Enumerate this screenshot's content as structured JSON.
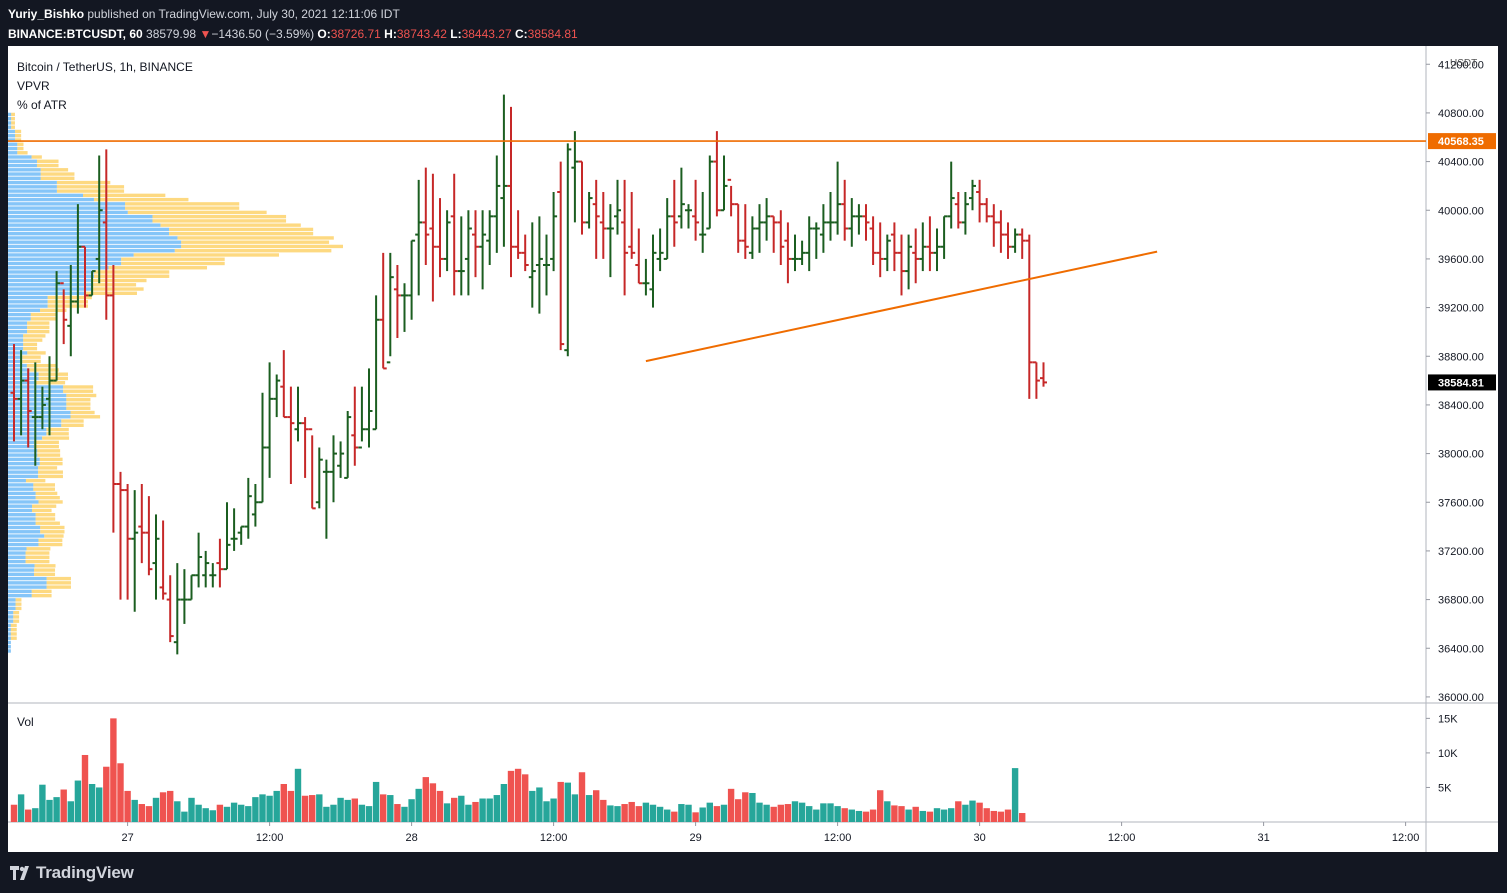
{
  "header": {
    "author": "Yuriy_Bishko",
    "published_text": "published on TradingView.com, July 30, 2021 12:11:06 IDT",
    "symbol": "BINANCE:BTCUSDT, 60",
    "last_price": "38579.98",
    "change_arrow": "▼",
    "change": "−1436.50 (−3.59%)",
    "open_label": "O:",
    "open": "38726.71",
    "high_label": "H:",
    "high": "38743.42",
    "low_label": "L:",
    "low": "38443.27",
    "close_label": "C:",
    "close": "38584.81"
  },
  "legend": {
    "series": "Bitcoin / TetherUS, 1h, BINANCE",
    "indicator1": "VPVR",
    "indicator2": "% of ATR"
  },
  "volume_pane": {
    "label": "Vol"
  },
  "footer": {
    "brand": "TradingView",
    "logo_icon": "tradingview-logo-icon"
  },
  "colors": {
    "up": "#1b5e20",
    "down": "#c62828",
    "vol_up": "#26a69a",
    "vol_down": "#ef5350",
    "annotation": "#ef6c00",
    "vpvr_blue": "#2196f3",
    "vpvr_yellow": "#fbc02d"
  },
  "chart_data": {
    "type": "ohlc",
    "quote_unit": "USDT",
    "y_range": [
      35950,
      41350
    ],
    "y_ticks": [
      "41200.00",
      "40800.00",
      "40400.00",
      "40000.00",
      "39600.00",
      "39200.00",
      "38800.00",
      "38400.00",
      "38000.00",
      "37600.00",
      "37200.00",
      "36800.00",
      "36400.00",
      "36000.00"
    ],
    "x_ticks": [
      {
        "label": "27",
        "bar": 16
      },
      {
        "label": "12:00",
        "bar": 36
      },
      {
        "label": "28",
        "bar": 56
      },
      {
        "label": "12:00",
        "bar": 76
      },
      {
        "label": "29",
        "bar": 96
      },
      {
        "label": "12:00",
        "bar": 116
      },
      {
        "label": "30",
        "bar": 136
      },
      {
        "label": "12:00",
        "bar": 156
      },
      {
        "label": "31",
        "bar": 176
      },
      {
        "label": "12:00",
        "bar": 196
      }
    ],
    "horizontal_level": {
      "price": 40568.35,
      "label": "40568.35"
    },
    "last_price_label": {
      "price": 38584.81,
      "label": "38584.81"
    },
    "trendline": {
      "from": {
        "bar": 89,
        "price": 38760
      },
      "to": {
        "bar": 161,
        "price": 39660
      }
    },
    "volume_ticks": [
      {
        "label": "15K",
        "v": 15000
      },
      {
        "label": "10K",
        "v": 10000
      },
      {
        "label": "5K",
        "v": 5000
      }
    ],
    "volume_max": 16500,
    "bars_open_high_low_close": [
      [
        38500,
        38900,
        38100,
        38450
      ],
      [
        38450,
        38850,
        38150,
        38600
      ],
      [
        38600,
        38700,
        38050,
        38350
      ],
      [
        38300,
        38750,
        37900,
        38300
      ],
      [
        38300,
        38550,
        38200,
        38400
      ],
      [
        38450,
        38800,
        38150,
        38600
      ],
      [
        38600,
        39500,
        38600,
        39400
      ],
      [
        39400,
        39350,
        38900,
        39100
      ],
      [
        39050,
        39550,
        38800,
        39250
      ],
      [
        39250,
        40050,
        39150,
        39700
      ],
      [
        39700,
        39700,
        39200,
        39300
      ],
      [
        39300,
        39500,
        39300,
        39500
      ],
      [
        39600,
        40450,
        39400,
        40000
      ],
      [
        39900,
        40500,
        39100,
        39300
      ],
      [
        39300,
        39550,
        37350,
        37750
      ],
      [
        37750,
        37850,
        36800,
        37700
      ],
      [
        37700,
        37750,
        36800,
        37300
      ],
      [
        37300,
        37700,
        36700,
        37350
      ],
      [
        37400,
        37750,
        37100,
        37350
      ],
      [
        37350,
        37650,
        37000,
        37050
      ],
      [
        37100,
        37500,
        36800,
        37300
      ],
      [
        36900,
        37450,
        36800,
        36850
      ],
      [
        36800,
        37000,
        36450,
        36500
      ],
      [
        36450,
        37100,
        36350,
        36800
      ],
      [
        36800,
        37050,
        36600,
        36800
      ],
      [
        36800,
        37000,
        36800,
        37000
      ],
      [
        37000,
        37350,
        36900,
        37150
      ],
      [
        37000,
        37200,
        36900,
        37100
      ],
      [
        37000,
        37100,
        36900,
        37000
      ],
      [
        37100,
        37300,
        36900,
        37050
      ],
      [
        37050,
        37600,
        37050,
        37250
      ],
      [
        37300,
        37550,
        37200,
        37300
      ],
      [
        37350,
        37400,
        37250,
        37400
      ],
      [
        37400,
        37800,
        37300,
        37650
      ],
      [
        37500,
        37750,
        37400,
        37600
      ],
      [
        37600,
        38500,
        37600,
        38050
      ],
      [
        38050,
        38750,
        37800,
        38450
      ],
      [
        38450,
        38650,
        38300,
        38600
      ],
      [
        38550,
        38850,
        38300,
        38300
      ],
      [
        38300,
        38550,
        37750,
        38250
      ],
      [
        38200,
        38550,
        38100,
        38250
      ],
      [
        38250,
        38300,
        37800,
        38200
      ],
      [
        38200,
        38150,
        37550,
        37550
      ],
      [
        37600,
        38050,
        37550,
        37950
      ],
      [
        37850,
        37950,
        37300,
        37850
      ],
      [
        37850,
        38150,
        37600,
        38000
      ],
      [
        37900,
        38100,
        37800,
        38000
      ],
      [
        37800,
        38350,
        37800,
        38300
      ],
      [
        38150,
        38550,
        37900,
        38050
      ],
      [
        38050,
        38550,
        38100,
        38200
      ],
      [
        38200,
        38700,
        38050,
        38350
      ],
      [
        38200,
        39300,
        38200,
        39100
      ],
      [
        39100,
        39650,
        38700,
        38700
      ],
      [
        38750,
        39650,
        38800,
        39450
      ],
      [
        39350,
        39550,
        38950,
        39300
      ],
      [
        39300,
        39400,
        39000,
        39300
      ],
      [
        39300,
        39750,
        39100,
        39750
      ],
      [
        39800,
        40250,
        39300,
        39900
      ],
      [
        39900,
        40350,
        39550,
        39800
      ],
      [
        39850,
        40300,
        39250,
        39700
      ],
      [
        39700,
        40100,
        39450,
        39600
      ],
      [
        39600,
        40000,
        39500,
        39900
      ],
      [
        39950,
        40300,
        39300,
        39500
      ],
      [
        39500,
        39950,
        39300,
        39500
      ],
      [
        39600,
        40000,
        39300,
        39850
      ],
      [
        39800,
        40000,
        39450,
        39700
      ],
      [
        39700,
        40000,
        39350,
        39800
      ],
      [
        39750,
        40000,
        39550,
        39950
      ],
      [
        39950,
        40450,
        39650,
        40200
      ],
      [
        40100,
        40950,
        39700,
        40200
      ],
      [
        40200,
        40850,
        39450,
        39700
      ],
      [
        39700,
        40000,
        39600,
        39650
      ],
      [
        39650,
        39800,
        39500,
        39550
      ],
      [
        39450,
        39900,
        39200,
        39500
      ],
      [
        39550,
        39950,
        39150,
        39600
      ],
      [
        39550,
        39800,
        39300,
        39550
      ],
      [
        39600,
        40150,
        39500,
        39950
      ],
      [
        40150,
        40400,
        38850,
        38900
      ],
      [
        38850,
        40550,
        38800,
        40500
      ],
      [
        40350,
        40650,
        39900,
        40400
      ],
      [
        40400,
        40400,
        39800,
        39900
      ],
      [
        39900,
        40150,
        39850,
        40100
      ],
      [
        40050,
        40250,
        39600,
        39950
      ],
      [
        39900,
        40150,
        39600,
        39850
      ],
      [
        39850,
        40050,
        39450,
        39850
      ],
      [
        39950,
        40250,
        39800,
        40000
      ],
      [
        39900,
        40250,
        39300,
        39650
      ],
      [
        39700,
        40150,
        39600,
        39650
      ],
      [
        39550,
        39850,
        39400,
        39400
      ],
      [
        39400,
        39600,
        39300,
        39400
      ],
      [
        39350,
        39800,
        39200,
        39650
      ],
      [
        39600,
        39850,
        39500,
        39650
      ],
      [
        39600,
        40100,
        39600,
        39950
      ],
      [
        39950,
        40250,
        39700,
        39900
      ],
      [
        39950,
        40350,
        39850,
        40050
      ],
      [
        40000,
        40050,
        39850,
        40000
      ],
      [
        39950,
        40250,
        39750,
        39900
      ],
      [
        39800,
        40150,
        39650,
        39800
      ],
      [
        39850,
        40450,
        39850,
        40400
      ],
      [
        40400,
        40650,
        39950,
        40000
      ],
      [
        40000,
        40450,
        40000,
        40200
      ],
      [
        40250,
        40200,
        39950,
        40050
      ],
      [
        40050,
        40050,
        39650,
        39750
      ],
      [
        39750,
        40050,
        39600,
        39700
      ],
      [
        39650,
        39950,
        39600,
        39850
      ],
      [
        39850,
        40050,
        39650,
        39900
      ],
      [
        39900,
        40100,
        39750,
        39950
      ],
      [
        39950,
        39950,
        39650,
        39900
      ],
      [
        39900,
        40000,
        39550,
        39700
      ],
      [
        39750,
        39900,
        39400,
        39600
      ],
      [
        39600,
        39800,
        39500,
        39600
      ],
      [
        39600,
        39750,
        39550,
        39650
      ],
      [
        39650,
        39950,
        39500,
        39850
      ],
      [
        39850,
        39900,
        39600,
        39850
      ],
      [
        39800,
        40050,
        39650,
        39900
      ],
      [
        39900,
        40150,
        39750,
        39900
      ],
      [
        39900,
        40400,
        39800,
        40050
      ],
      [
        40050,
        40250,
        39750,
        39850
      ],
      [
        39850,
        40100,
        39700,
        39950
      ],
      [
        39950,
        40050,
        39800,
        39950
      ],
      [
        39950,
        40050,
        39750,
        39900
      ],
      [
        39850,
        39950,
        39550,
        39650
      ],
      [
        39650,
        39900,
        39450,
        39600
      ],
      [
        39600,
        39800,
        39500,
        39750
      ],
      [
        39800,
        39900,
        39500,
        39650
      ],
      [
        39650,
        39800,
        39300,
        39500
      ],
      [
        39500,
        39800,
        39350,
        39700
      ],
      [
        39650,
        39850,
        39400,
        39600
      ],
      [
        39600,
        39900,
        39500,
        39700
      ],
      [
        39700,
        39950,
        39500,
        39650
      ],
      [
        39650,
        39850,
        39500,
        39700
      ],
      [
        39700,
        39950,
        39600,
        39950
      ],
      [
        39950,
        40400,
        39850,
        40100
      ],
      [
        40050,
        40150,
        39850,
        39900
      ],
      [
        39900,
        40150,
        39800,
        40050
      ],
      [
        40100,
        40250,
        40000,
        40200
      ],
      [
        40150,
        40250,
        39900,
        40050
      ],
      [
        40050,
        40100,
        39900,
        39950
      ],
      [
        39950,
        40050,
        39700,
        39900
      ],
      [
        39900,
        40000,
        39650,
        39800
      ],
      [
        39800,
        39900,
        39600,
        39700
      ],
      [
        39700,
        39850,
        39650,
        39800
      ],
      [
        39800,
        39850,
        39600,
        39750
      ],
      [
        39750,
        39800,
        38450,
        38750
      ],
      [
        38750,
        38750,
        38450,
        38600
      ],
      [
        38620,
        38750,
        38550,
        38585
      ]
    ],
    "volume": [
      2500,
      4000,
      1800,
      2000,
      5400,
      3200,
      3600,
      4700,
      3000,
      6000,
      9700,
      5500,
      5000,
      8000,
      15000,
      8500,
      4500,
      3200,
      2600,
      2300,
      3500,
      4300,
      4500,
      3000,
      1500,
      3500,
      2500,
      2000,
      1700,
      2500,
      2200,
      2800,
      2500,
      2300,
      3600,
      4000,
      3800,
      4500,
      5500,
      4500,
      7700,
      3800,
      3900,
      4000,
      2200,
      2500,
      3500,
      3200,
      3400,
      2500,
      2300,
      5800,
      4000,
      3900,
      2600,
      2200,
      3300,
      4800,
      6500,
      5600,
      4500,
      2700,
      3500,
      3800,
      2500,
      2900,
      3400,
      3400,
      3900,
      5500,
      7400,
      7700,
      6900,
      4500,
      5000,
      3000,
      3400,
      5800,
      5700,
      4000,
      7200,
      3900,
      4600,
      3200,
      2400,
      2300,
      2600,
      2900,
      2300,
      2800,
      2500,
      2200,
      1800,
      1500,
      2600,
      2500,
      1400,
      2100,
      2800,
      2300,
      2500,
      4800,
      3300,
      4300,
      4200,
      2800,
      2500,
      2200,
      2500,
      2600,
      3000,
      2800,
      2300,
      1800,
      2700,
      2700,
      2300,
      2000,
      1800,
      1600,
      1500,
      1800,
      4600,
      3000,
      2400,
      2300,
      1800,
      2200,
      1600,
      1500,
      2000,
      1800,
      2000,
      3000,
      2500,
      3100,
      2800,
      2000,
      1600,
      1500,
      1800,
      7800,
      1300
    ]
  }
}
